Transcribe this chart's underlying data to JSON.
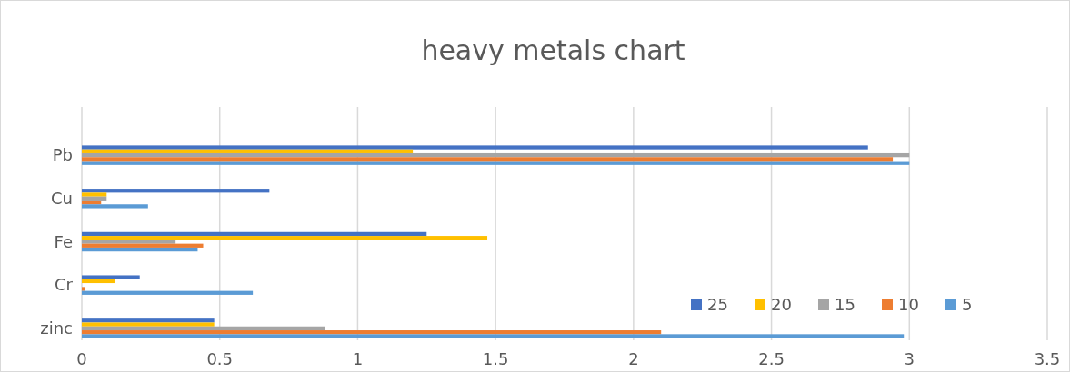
{
  "chart_data": {
    "type": "bar",
    "orientation": "horizontal",
    "title": "heavy metals chart",
    "categories": [
      "Pb",
      "Cu",
      "Fe",
      "Cr",
      "zinc"
    ],
    "series": [
      {
        "name": "25",
        "color": "#4472c4",
        "values": [
          2.85,
          0.68,
          1.25,
          0.21,
          0.48
        ]
      },
      {
        "name": "20",
        "color": "#ffc000",
        "values": [
          1.2,
          0.09,
          1.47,
          0.12,
          0.48
        ]
      },
      {
        "name": "15",
        "color": "#a5a5a5",
        "values": [
          3.0,
          0.09,
          0.34,
          null,
          0.88
        ]
      },
      {
        "name": "10",
        "color": "#ed7d31",
        "values": [
          2.94,
          0.07,
          0.44,
          0.01,
          2.1
        ]
      },
      {
        "name": "5",
        "color": "#5b9bd5",
        "values": [
          3.0,
          0.24,
          0.42,
          0.62,
          2.98
        ]
      }
    ],
    "xlim": [
      0,
      3.5
    ],
    "xticks": [
      0,
      0.5,
      1,
      1.5,
      2,
      2.5,
      3,
      3.5
    ],
    "grid": "x",
    "legend": "bottom right"
  }
}
